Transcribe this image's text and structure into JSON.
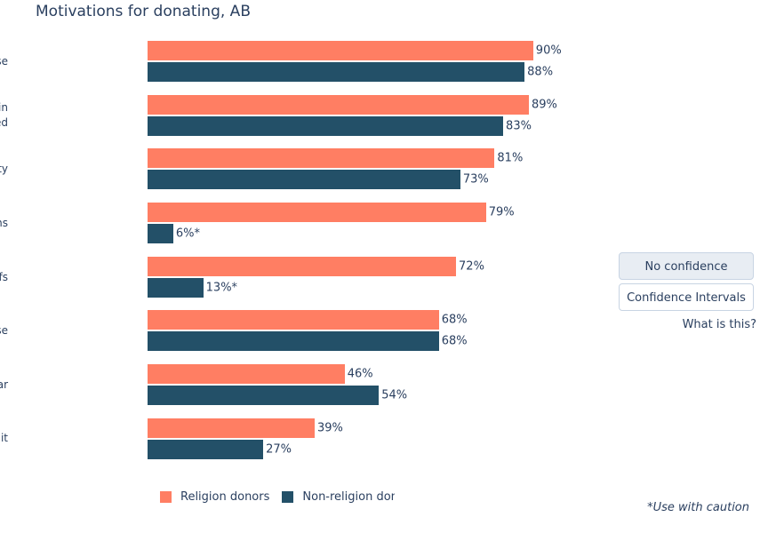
{
  "title": "Motivations for donating, AB",
  "chart_data": {
    "type": "bar",
    "orientation": "horizontal",
    "title": "Motivations for donating, AB",
    "xlabel": "",
    "ylabel": "",
    "xlim": [
      0,
      100
    ],
    "grid": false,
    "legend_position": "bottom",
    "value_suffix": "%",
    "categories": [
      "Personally believed in cause",
      "Compassion towards people in\nneed",
      "Contribution to community",
      "Religious reasons",
      "Spiritual beliefs",
      "Personally affected by cause",
      "Was asked by someone familiar",
      "Tax credit"
    ],
    "series": [
      {
        "name": "Religion donors",
        "color": "#FF7E63",
        "values": [
          90,
          89,
          81,
          79,
          72,
          68,
          46,
          39
        ],
        "labels": [
          "90%",
          "89%",
          "81%",
          "79%",
          "72%",
          "68%",
          "46%",
          "39%"
        ]
      },
      {
        "name": "Non-religion donors",
        "color": "#235068",
        "values": [
          88,
          83,
          73,
          6,
          13,
          68,
          54,
          27
        ],
        "labels": [
          "88%",
          "83%",
          "73%",
          "6%*",
          "13%*",
          "68%",
          "54%",
          "27%"
        ]
      }
    ],
    "footnote": "*Use with caution"
  },
  "legend": {
    "items": [
      {
        "label": "Religion donors",
        "color": "#FF7E63"
      },
      {
        "label": "Non-religion donors",
        "color": "#235068"
      }
    ]
  },
  "sidebar": {
    "buttons": [
      {
        "label": "No confidence intervals",
        "active": true
      },
      {
        "label": "Confidence Intervals",
        "active": false
      }
    ],
    "help_link": "What is this?"
  },
  "footnote": "*Use with caution",
  "colors": {
    "religion_bar": "#FF7E63",
    "non_religion_bar": "#235068",
    "text": "#2a3f5f",
    "button_active_bg": "#e8edf3",
    "button_border": "#c8d4e3",
    "background": "#ffffff"
  }
}
